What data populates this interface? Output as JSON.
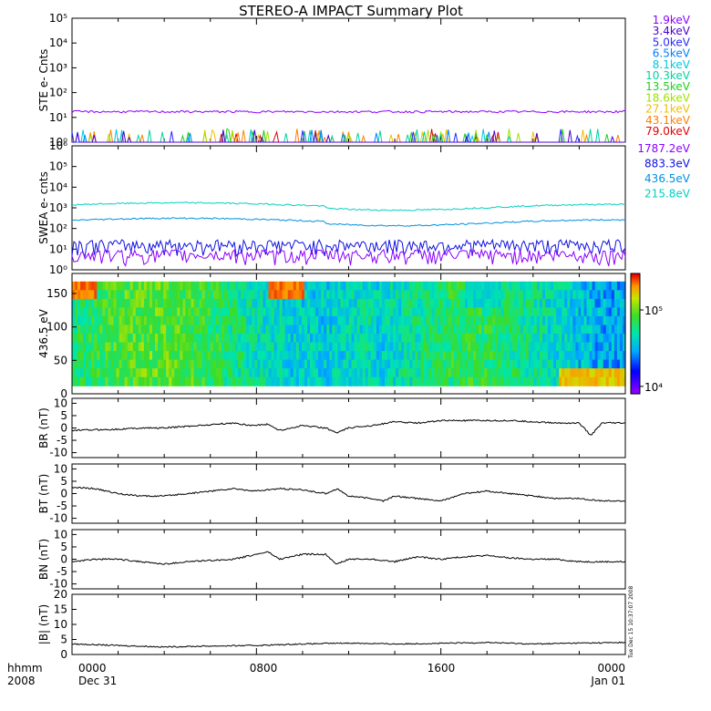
{
  "title": "STEREO-A IMPACT Summary Plot",
  "colors": {
    "ste": [
      "#8b00ff",
      "#4b00cc",
      "#2a2aff",
      "#0080ff",
      "#00c8e0",
      "#00d2a0",
      "#20d020",
      "#a0e000",
      "#f0c000",
      "#ff8000",
      "#e00000"
    ],
    "swea": [
      "#8b00ff",
      "#1010e0",
      "#0090e0",
      "#00d0c0"
    ]
  },
  "footer": {
    "units_label": "hhmm",
    "year_label": "2008",
    "start_time": "0000",
    "start_date": "Dec 31",
    "mid1": "0800",
    "mid2": "1600",
    "end_time": "0000",
    "end_date": "Jan 01"
  },
  "side_stamp": "Tue Dec 15 10:37:07 2008",
  "chart_data": [
    {
      "type": "line",
      "panel": "ste",
      "ylabel": "STE e- Cnts",
      "yscale": "log",
      "ylim": [
        1,
        100000
      ],
      "yticks": [
        "10⁰",
        "10¹",
        "10²",
        "10³",
        "10⁴",
        "10⁵"
      ],
      "series": [
        {
          "name": "1.9keV",
          "level": 17
        },
        {
          "name": "3.4keV",
          "level": 1
        },
        {
          "name": "5.0keV",
          "level": 1
        },
        {
          "name": "6.5keV",
          "level": 1
        },
        {
          "name": "8.1keV",
          "level": 1
        },
        {
          "name": "10.3keV",
          "level": 1
        },
        {
          "name": "13.5keV",
          "level": 1
        },
        {
          "name": "18.6keV",
          "level": 1
        },
        {
          "name": "27.1keV",
          "level": 1
        },
        {
          "name": "43.1keV",
          "level": 1
        },
        {
          "name": "79.0keV",
          "level": 1
        }
      ]
    },
    {
      "type": "line",
      "panel": "swea",
      "ylabel": "SWEA e- cnts",
      "yscale": "log",
      "ylim": [
        1,
        1000000
      ],
      "yticks": [
        "10⁰",
        "10¹",
        "10²",
        "10³",
        "10⁴",
        "10⁵",
        "10⁶"
      ],
      "series": [
        {
          "name": "1787.2eV",
          "level": 5
        },
        {
          "name": "883.3eV",
          "level": 15
        },
        {
          "name": "436.5eV",
          "level": 250
        },
        {
          "name": "215.8eV",
          "level": 1400
        }
      ]
    },
    {
      "type": "heatmap",
      "panel": "pad",
      "ylabel": "436.5 eV",
      "ylim": [
        0,
        180
      ],
      "yticks": [
        "0",
        "50",
        "100",
        "150"
      ],
      "colorbar": {
        "scale": "log",
        "range": [
          8000,
          300000
        ],
        "ticks": [
          "10⁴",
          "10⁵"
        ]
      }
    },
    {
      "type": "line",
      "panel": "br",
      "ylabel": "BR (nT)",
      "ylim": [
        -12,
        12
      ],
      "yticks": [
        "-10",
        "-5",
        "0",
        "5",
        "10"
      ],
      "x": [
        0,
        2,
        3,
        4,
        5.5,
        7,
        7.8,
        8.5,
        9,
        10,
        11,
        11.5,
        12,
        13,
        14,
        15,
        16,
        17,
        18,
        19,
        20,
        21,
        22,
        22.5,
        23,
        23.5,
        24
      ],
      "y": [
        -1,
        -0.5,
        0,
        0,
        1,
        2,
        1,
        1.5,
        -1,
        1,
        0,
        -2,
        0,
        1,
        2.5,
        2,
        3,
        3,
        3,
        3,
        2.5,
        2,
        2,
        -3,
        2,
        2,
        2
      ]
    },
    {
      "type": "line",
      "panel": "bt",
      "ylabel": "BT (nT)",
      "ylim": [
        -12,
        12
      ],
      "yticks": [
        "-10",
        "-5",
        "0",
        "5",
        "10"
      ],
      "x": [
        0,
        1,
        2,
        3,
        4,
        5,
        6,
        7,
        8,
        9,
        10,
        11,
        11.5,
        12,
        13,
        13.5,
        14,
        15,
        16,
        17,
        18,
        19,
        20,
        21,
        22,
        23,
        24
      ],
      "y": [
        2.5,
        2,
        0,
        -1,
        -1,
        0,
        1,
        2,
        1,
        2,
        1.5,
        0,
        2,
        -1,
        -2,
        -3,
        -1,
        -2,
        -3,
        0,
        1,
        0,
        -1,
        -2,
        -2,
        -3,
        -3
      ]
    },
    {
      "type": "line",
      "panel": "bn",
      "ylabel": "BN (nT)",
      "ylim": [
        -12,
        12
      ],
      "yticks": [
        "-10",
        "-5",
        "0",
        "5",
        "10"
      ],
      "x": [
        0,
        1,
        2,
        3,
        4,
        5,
        6,
        7,
        8,
        8.5,
        9,
        10,
        11,
        11.5,
        12,
        13,
        14,
        15,
        16,
        17,
        18,
        19,
        20,
        21,
        22,
        23,
        24
      ],
      "y": [
        -1,
        0,
        0,
        -1,
        -2,
        -1,
        -0.5,
        0,
        2,
        3,
        0,
        2,
        2,
        -2,
        0,
        0,
        -1,
        1,
        0,
        1,
        1.5,
        0.5,
        0,
        0,
        -1,
        -1,
        -1
      ]
    },
    {
      "type": "line",
      "panel": "bmag",
      "ylabel": "|B| (nT)",
      "ylim": [
        0,
        20
      ],
      "yticks": [
        "0",
        "5",
        "10",
        "15",
        "20"
      ],
      "x": [
        0,
        2,
        4,
        6,
        8,
        10,
        12,
        14,
        16,
        18,
        20,
        22,
        24
      ],
      "y": [
        3.5,
        3,
        2.5,
        2.8,
        3,
        3.5,
        3.8,
        3.5,
        3.7,
        4,
        3.5,
        3.8,
        4
      ]
    }
  ]
}
